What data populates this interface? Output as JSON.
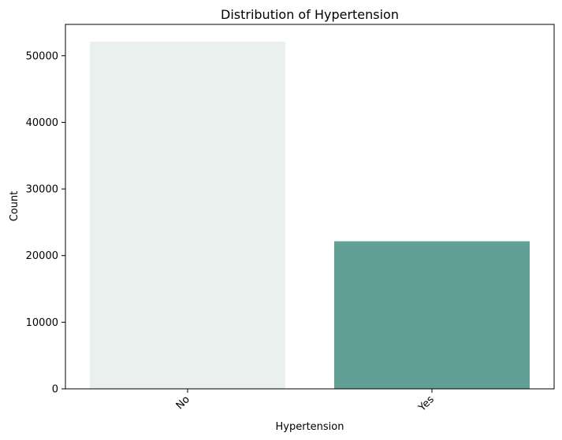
{
  "chart_data": {
    "type": "bar",
    "title": "Distribution of Hypertension",
    "xlabel": "Hypertension",
    "ylabel": "Count",
    "categories": [
      "No",
      "Yes"
    ],
    "values": [
      52100,
      22150
    ],
    "ylim": [
      0,
      54700
    ],
    "yticks": [
      0,
      10000,
      20000,
      30000,
      40000,
      50000
    ],
    "ytick_labels": [
      "0",
      "10000",
      "20000",
      "30000",
      "40000",
      "50000"
    ],
    "grid": false,
    "x_tick_rotation": 45,
    "colors": [
      "#eaf0ee",
      "#61a096"
    ]
  }
}
